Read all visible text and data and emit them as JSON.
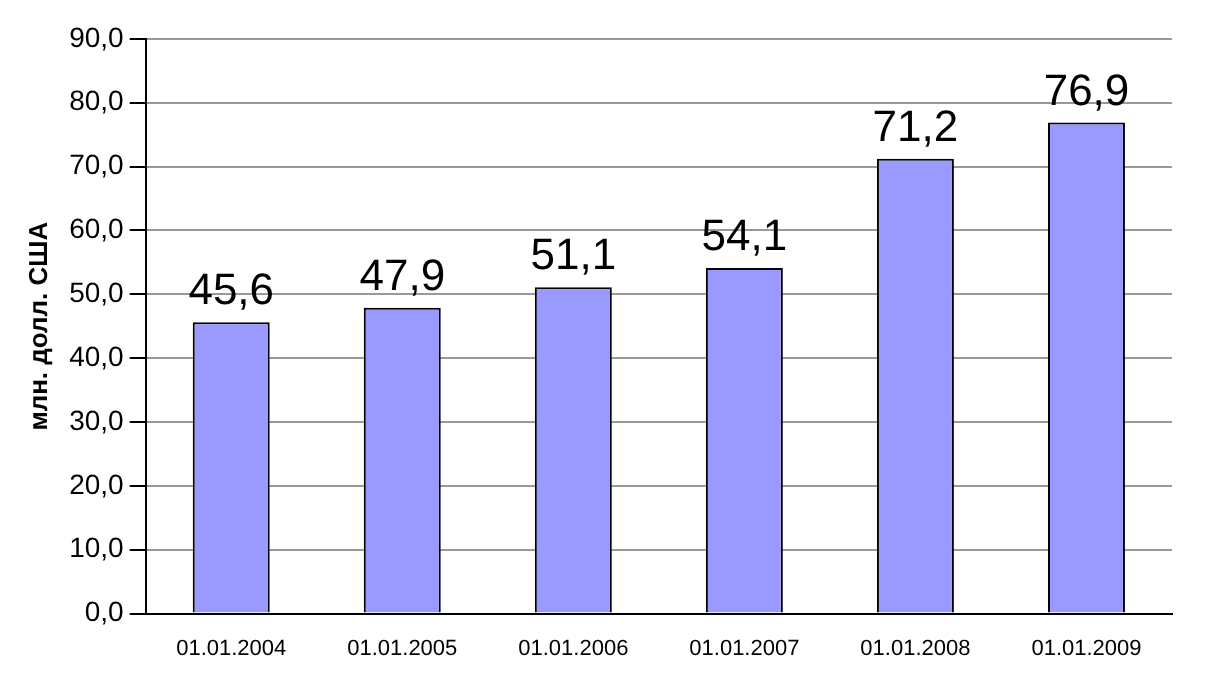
{
  "chart_data": {
    "type": "bar",
    "ylabel": "млн. долл. США",
    "categories": [
      "01.01.2004",
      "01.01.2005",
      "01.01.2006",
      "01.01.2007",
      "01.01.2008",
      "01.01.2009"
    ],
    "values": [
      45.6,
      47.9,
      51.1,
      54.1,
      71.2,
      76.9
    ],
    "value_labels": [
      "45,6",
      "47,9",
      "51,1",
      "54,1",
      "71,2",
      "76,9"
    ],
    "color": "#9999ff",
    "ylim": [
      0,
      90
    ],
    "yticks": [
      {
        "value": 0,
        "label": "0,0"
      },
      {
        "value": 10,
        "label": "10,0"
      },
      {
        "value": 20,
        "label": "20,0"
      },
      {
        "value": 30,
        "label": "30,0"
      },
      {
        "value": 40,
        "label": "40,0"
      },
      {
        "value": 50,
        "label": "50,0"
      },
      {
        "value": 60,
        "label": "60,0"
      },
      {
        "value": 70,
        "label": "70,0"
      },
      {
        "value": 80,
        "label": "80,0"
      },
      {
        "value": 90,
        "label": "90,0"
      }
    ],
    "grid": "y",
    "legend": false
  }
}
